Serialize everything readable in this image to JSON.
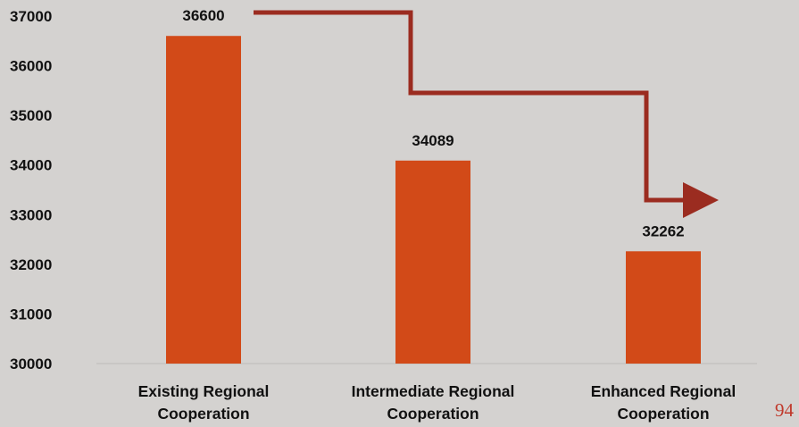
{
  "chart_data": {
    "type": "bar",
    "categories": [
      [
        "Existing Regional",
        "Cooperation"
      ],
      [
        "Intermediate Regional",
        "Cooperation"
      ],
      [
        "Enhanced Regional",
        "Cooperation"
      ]
    ],
    "values": [
      36600,
      34089,
      32262
    ],
    "data_labels": [
      "36600",
      "34089",
      "32262"
    ],
    "yticks": [
      30000,
      31000,
      32000,
      33000,
      34000,
      35000,
      36000,
      37000
    ],
    "ylim": [
      30000,
      37000
    ],
    "grid": false,
    "bar_color": "#d24a18",
    "trend_arrow_color": "#9b2c20",
    "annotation": "decreasing step arrow across bars"
  },
  "page_number": "94"
}
